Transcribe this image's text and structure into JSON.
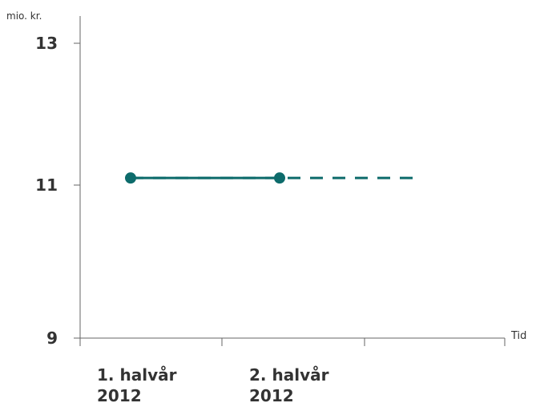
{
  "chart_data": {
    "type": "line",
    "ylabel": "mio. kr.",
    "xlabel": "Tid",
    "ylim": [
      9,
      13
    ],
    "yticks": [
      9,
      11,
      13
    ],
    "categories": [
      [
        "1. halvår",
        "2012"
      ],
      [
        "2. halvår",
        "2012"
      ]
    ],
    "series": [
      {
        "style": "solid",
        "marker": "circle",
        "x": [
          0,
          1
        ],
        "values": [
          11.1,
          11.1
        ]
      },
      {
        "style": "dashed",
        "marker": "none",
        "x": [
          0,
          2
        ],
        "values": [
          11.1,
          11.1
        ]
      }
    ],
    "grid": false,
    "colors": {
      "line": "#0d6b6b",
      "axis": "#666666",
      "text": "#333333"
    }
  }
}
